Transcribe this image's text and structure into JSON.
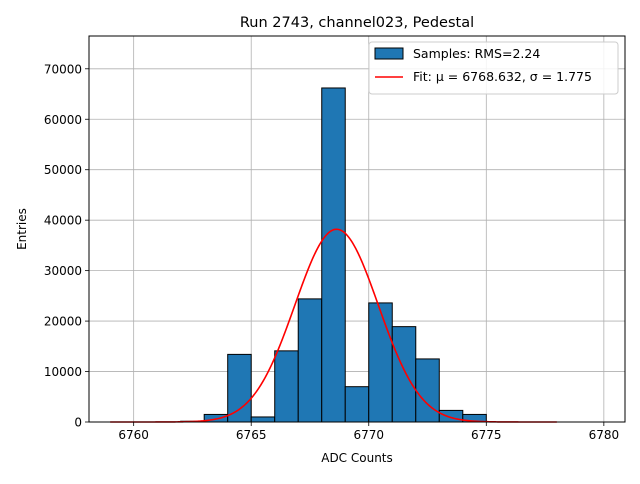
{
  "chart_data": {
    "type": "bar",
    "title": "Run 2743, channel023, Pedestal",
    "xlabel": "ADC Counts",
    "ylabel": "Entries",
    "xlim": [
      6758.1,
      6780.9
    ],
    "ylim": [
      0,
      76500
    ],
    "xticks": [
      6760,
      6765,
      6770,
      6775,
      6780
    ],
    "yticks": [
      0,
      10000,
      20000,
      30000,
      40000,
      50000,
      60000,
      70000
    ],
    "grid": true,
    "legend_position": "top-right",
    "histogram": {
      "name": "Samples: RMS=2.24",
      "color": "#1f77b4",
      "edgecolor": "#000000",
      "bin_width": 1,
      "bin_left_edges": [
        6759,
        6760,
        6761,
        6762,
        6763,
        6764,
        6765,
        6766,
        6767,
        6768,
        6769,
        6770,
        6771,
        6772,
        6773,
        6774,
        6775,
        6776,
        6777
      ],
      "counts": [
        0,
        0,
        0,
        150,
        1500,
        13400,
        1000,
        14100,
        24400,
        66200,
        7000,
        23600,
        18900,
        12500,
        2300,
        1500,
        0,
        0,
        0
      ]
    },
    "fit": {
      "name": "Fit: μ = 6768.632, σ = 1.775",
      "color": "#ff0000",
      "mu": 6768.632,
      "sigma": 1.775,
      "amplitude": 38200,
      "x_range": [
        6759,
        6778
      ]
    }
  }
}
